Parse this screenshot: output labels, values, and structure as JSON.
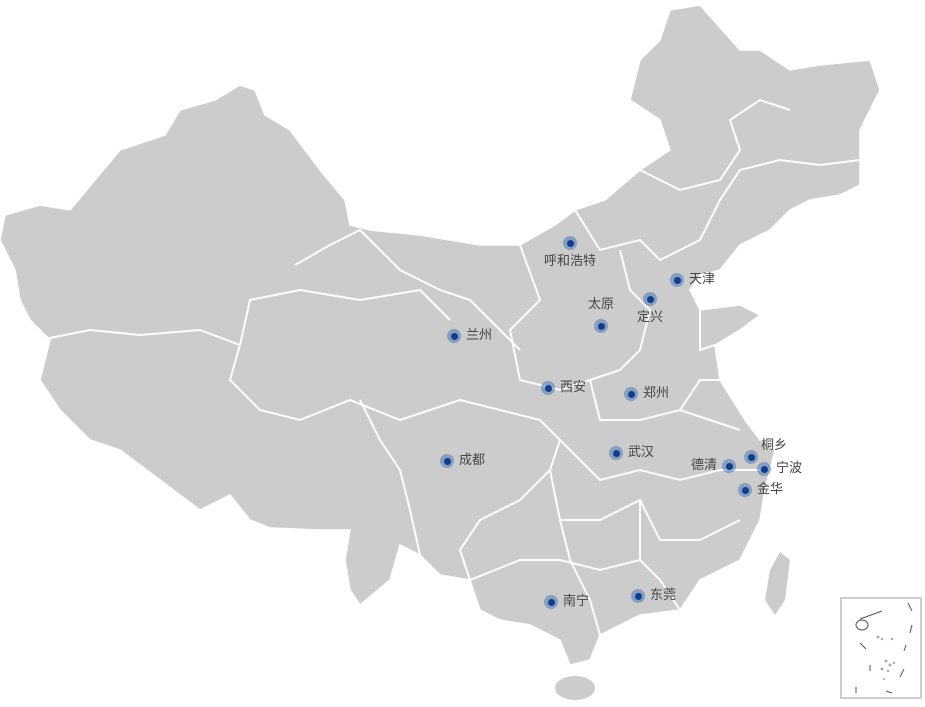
{
  "map": {
    "region": "China",
    "land_color": "#cccccc",
    "border_color": "#ffffff",
    "marker_color": "#0b3f91",
    "marker_halo_color": "#7f9fc8",
    "cities": [
      {
        "name": "呼和浩特",
        "label_pos": "below"
      },
      {
        "name": "天津",
        "label_pos": "right"
      },
      {
        "name": "定兴",
        "label_pos": "below"
      },
      {
        "name": "太原",
        "label_pos": "above"
      },
      {
        "name": "兰州",
        "label_pos": "right"
      },
      {
        "name": "西安",
        "label_pos": "right"
      },
      {
        "name": "郑州",
        "label_pos": "right"
      },
      {
        "name": "成都",
        "label_pos": "right"
      },
      {
        "name": "武汉",
        "label_pos": "right"
      },
      {
        "name": "德清",
        "label_pos": "left"
      },
      {
        "name": "桐乡",
        "label_pos": "upper-right"
      },
      {
        "name": "宁波",
        "label_pos": "right"
      },
      {
        "name": "金华",
        "label_pos": "right"
      },
      {
        "name": "南宁",
        "label_pos": "right"
      },
      {
        "name": "东莞",
        "label_pos": "right"
      }
    ],
    "inset": "South China Sea islands"
  }
}
